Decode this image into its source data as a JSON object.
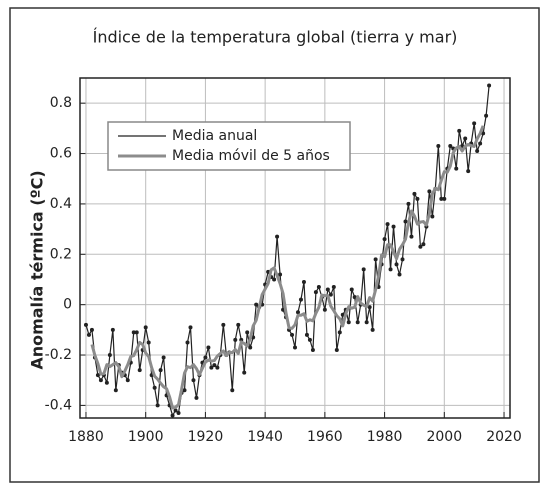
{
  "chart_data": {
    "type": "line",
    "title": "Índice de la temperatura global (tierra y mar)",
    "y_label": "Anomalía térmica (ºC)",
    "x": [
      1880,
      1881,
      1882,
      1883,
      1884,
      1885,
      1886,
      1887,
      1888,
      1889,
      1890,
      1891,
      1892,
      1893,
      1894,
      1895,
      1896,
      1897,
      1898,
      1899,
      1900,
      1901,
      1902,
      1903,
      1904,
      1905,
      1906,
      1907,
      1908,
      1909,
      1910,
      1911,
      1912,
      1913,
      1914,
      1915,
      1916,
      1917,
      1918,
      1919,
      1920,
      1921,
      1922,
      1923,
      1924,
      1925,
      1926,
      1927,
      1928,
      1929,
      1930,
      1931,
      1932,
      1933,
      1934,
      1935,
      1936,
      1937,
      1938,
      1939,
      1940,
      1941,
      1942,
      1943,
      1944,
      1945,
      1946,
      1947,
      1948,
      1949,
      1950,
      1951,
      1952,
      1953,
      1954,
      1955,
      1956,
      1957,
      1958,
      1959,
      1960,
      1961,
      1962,
      1963,
      1964,
      1965,
      1966,
      1967,
      1968,
      1969,
      1970,
      1971,
      1972,
      1973,
      1974,
      1975,
      1976,
      1977,
      1978,
      1979,
      1980,
      1981,
      1982,
      1983,
      1984,
      1985,
      1986,
      1987,
      1988,
      1989,
      1990,
      1991,
      1992,
      1993,
      1994,
      1995,
      1996,
      1997,
      1998,
      1999,
      2000,
      2001,
      2002,
      2003,
      2004,
      2005,
      2006,
      2007,
      2008,
      2009,
      2010,
      2011,
      2012,
      2013,
      2014,
      2015
    ],
    "series": [
      {
        "name": "Media anual",
        "color": "#222222",
        "markers": true,
        "values": [
          -0.08,
          -0.12,
          -0.1,
          -0.21,
          -0.28,
          -0.3,
          -0.28,
          -0.31,
          -0.2,
          -0.1,
          -0.34,
          -0.24,
          -0.27,
          -0.28,
          -0.3,
          -0.23,
          -0.11,
          -0.11,
          -0.26,
          -0.18,
          -0.09,
          -0.15,
          -0.28,
          -0.33,
          -0.4,
          -0.26,
          -0.21,
          -0.36,
          -0.4,
          -0.44,
          -0.42,
          -0.43,
          -0.35,
          -0.34,
          -0.15,
          -0.09,
          -0.3,
          -0.37,
          -0.28,
          -0.23,
          -0.21,
          -0.17,
          -0.25,
          -0.24,
          -0.25,
          -0.2,
          -0.08,
          -0.2,
          -0.19,
          -0.34,
          -0.14,
          -0.08,
          -0.14,
          -0.27,
          -0.11,
          -0.17,
          -0.13,
          0.0,
          -0.01,
          0.0,
          0.08,
          0.13,
          0.11,
          0.1,
          0.27,
          0.12,
          -0.02,
          -0.05,
          -0.1,
          -0.12,
          -0.17,
          -0.03,
          0.02,
          0.09,
          -0.12,
          -0.14,
          -0.18,
          0.05,
          0.07,
          0.03,
          -0.02,
          0.06,
          0.04,
          0.07,
          -0.18,
          -0.11,
          -0.04,
          -0.02,
          -0.07,
          0.06,
          0.03,
          -0.07,
          0.0,
          0.14,
          -0.07,
          -0.01,
          -0.1,
          0.18,
          0.07,
          0.16,
          0.26,
          0.32,
          0.14,
          0.31,
          0.16,
          0.12,
          0.18,
          0.33,
          0.4,
          0.27,
          0.44,
          0.42,
          0.23,
          0.24,
          0.31,
          0.45,
          0.35,
          0.46,
          0.63,
          0.42,
          0.42,
          0.54,
          0.63,
          0.62,
          0.54,
          0.69,
          0.63,
          0.66,
          0.53,
          0.64,
          0.72,
          0.61,
          0.64,
          0.68,
          0.75,
          0.87
        ]
      },
      {
        "name": "Media móvil de 5 años",
        "color": "#8c8c8c",
        "markers": false,
        "values": [
          null,
          null,
          -0.158,
          -0.202,
          -0.234,
          -0.276,
          -0.274,
          -0.238,
          -0.246,
          -0.238,
          -0.23,
          -0.246,
          -0.286,
          -0.264,
          -0.238,
          -0.206,
          -0.202,
          -0.178,
          -0.15,
          -0.158,
          -0.192,
          -0.206,
          -0.25,
          -0.284,
          -0.296,
          -0.312,
          -0.326,
          -0.334,
          -0.366,
          -0.41,
          -0.408,
          -0.396,
          -0.338,
          -0.272,
          -0.246,
          -0.25,
          -0.238,
          -0.254,
          -0.278,
          -0.252,
          -0.228,
          -0.22,
          -0.224,
          -0.222,
          -0.204,
          -0.194,
          -0.184,
          -0.202,
          -0.19,
          -0.19,
          -0.178,
          -0.194,
          -0.148,
          -0.154,
          -0.164,
          -0.136,
          -0.084,
          -0.062,
          -0.012,
          0.04,
          0.062,
          0.084,
          0.138,
          0.146,
          0.116,
          0.084,
          0.044,
          -0.034,
          -0.092,
          -0.094,
          -0.08,
          -0.042,
          -0.042,
          -0.036,
          -0.066,
          -0.06,
          -0.064,
          -0.034,
          -0.01,
          0.038,
          0.036,
          0.036,
          -0.006,
          -0.024,
          -0.044,
          -0.056,
          -0.084,
          -0.036,
          -0.008,
          -0.014,
          -0.01,
          0.032,
          0.006,
          -0.002,
          -0.008,
          0.028,
          0.014,
          0.06,
          0.114,
          0.198,
          0.19,
          0.238,
          0.238,
          0.21,
          0.182,
          0.22,
          0.238,
          0.26,
          0.324,
          0.372,
          0.352,
          0.32,
          0.328,
          0.33,
          0.316,
          0.362,
          0.44,
          0.462,
          0.456,
          0.494,
          0.528,
          0.526,
          0.55,
          0.604,
          0.622,
          0.628,
          0.61,
          0.63,
          0.636,
          0.632,
          0.628,
          0.658,
          0.68,
          0.71,
          null,
          null
        ]
      }
    ],
    "xlim": [
      1878,
      2022
    ],
    "ylim": [
      -0.45,
      0.9
    ],
    "xticks": [
      1880,
      1900,
      1920,
      1940,
      1960,
      1980,
      2000,
      2020
    ],
    "yticks": [
      -0.4,
      -0.2,
      0,
      0.2,
      0.4,
      0.6,
      0.8
    ],
    "grid": true,
    "legend": "upper left"
  }
}
